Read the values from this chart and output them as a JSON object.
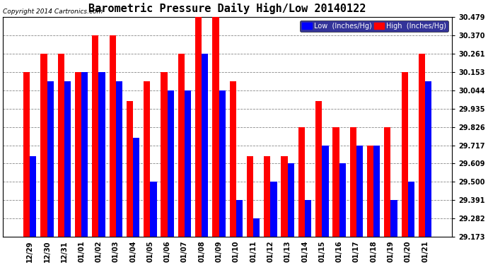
{
  "title": "Barometric Pressure Daily High/Low 20140122",
  "copyright": "Copyright 2014 Cartronics.com",
  "legend_low": "Low  (Inches/Hg)",
  "legend_high": "High  (Inches/Hg)",
  "dates": [
    "12/29",
    "12/30",
    "12/31",
    "01/01",
    "01/02",
    "01/03",
    "01/04",
    "01/05",
    "01/06",
    "01/07",
    "01/08",
    "01/09",
    "01/10",
    "01/11",
    "01/12",
    "01/13",
    "01/14",
    "01/15",
    "01/16",
    "01/17",
    "01/18",
    "01/19",
    "01/20",
    "01/21"
  ],
  "high": [
    30.153,
    30.261,
    30.261,
    30.153,
    30.37,
    30.37,
    29.98,
    30.098,
    30.153,
    30.261,
    30.479,
    30.479,
    30.098,
    29.653,
    29.653,
    29.653,
    29.826,
    29.98,
    29.826,
    29.826,
    29.717,
    29.826,
    30.153,
    30.261
  ],
  "low": [
    29.653,
    30.098,
    30.098,
    30.153,
    30.153,
    30.098,
    29.762,
    29.5,
    30.044,
    30.044,
    30.261,
    30.044,
    29.391,
    29.282,
    29.5,
    29.609,
    29.391,
    29.717,
    29.609,
    29.717,
    29.717,
    29.391,
    29.5,
    30.098
  ],
  "ylim_min": 29.173,
  "ylim_max": 30.479,
  "yticks": [
    29.173,
    29.282,
    29.391,
    29.5,
    29.609,
    29.717,
    29.826,
    29.935,
    30.044,
    30.153,
    30.261,
    30.37,
    30.479
  ],
  "bar_color_low": "#0000ff",
  "bar_color_high": "#ff0000",
  "bg_color": "#ffffff",
  "grid_color": "#888888",
  "title_color": "#000000",
  "title_fontsize": 11,
  "bar_width": 0.38,
  "legend_bg": "#000080"
}
